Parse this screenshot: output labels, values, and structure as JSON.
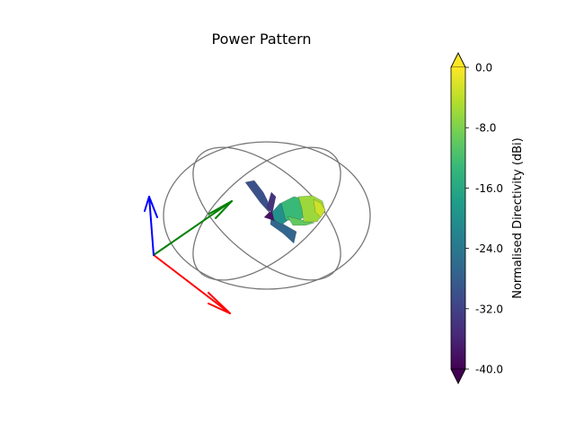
{
  "chart_data": {
    "type": "3d-surface",
    "title": "Power Pattern",
    "colormap": "viridis",
    "colorbar": {
      "label": "Normalised Directivity (dBi)",
      "range": [
        -40.0,
        0.0
      ],
      "ticks": [
        "0.0",
        "-8.0",
        "-16.0",
        "-24.0",
        "-32.0",
        "-40.0"
      ],
      "extend": "both",
      "colors": [
        "#440154",
        "#482878",
        "#3e4989",
        "#31688e",
        "#26828e",
        "#1f9e89",
        "#35b779",
        "#6ece58",
        "#b5de2b",
        "#fde725"
      ]
    },
    "axes_triad": {
      "x_color": "#ff0000",
      "y_color": "#008000",
      "z_color": "#0000ff"
    },
    "reference_circles": {
      "color": "#777777"
    },
    "grid": false,
    "legend": "none"
  }
}
